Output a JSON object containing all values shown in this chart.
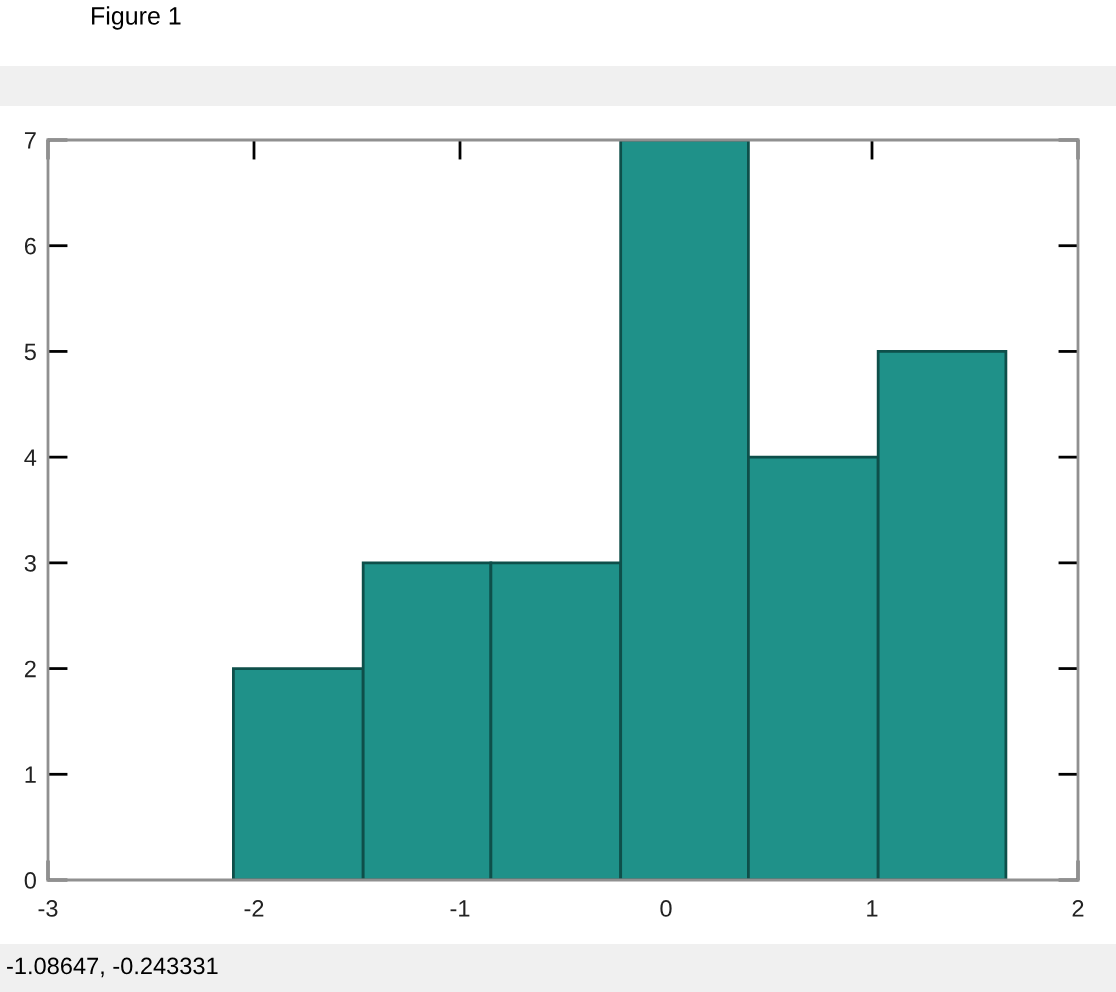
{
  "chart_data": {
    "type": "histogram",
    "title": "Figure 1",
    "bins": [
      -2.1,
      -1.47,
      -0.85,
      -0.22,
      0.4,
      1.03,
      1.65
    ],
    "values": [
      2,
      3,
      3,
      7,
      4,
      5
    ],
    "color": "#1f9189",
    "xlim": [
      -3,
      2
    ],
    "xticks": [
      -3,
      -2,
      -1,
      0,
      1,
      2
    ],
    "ylim": [
      0,
      7
    ],
    "yticks": [
      0,
      1,
      2,
      3,
      4,
      5,
      6,
      7
    ],
    "annotations": [
      "-1.08647, -0.243331"
    ]
  }
}
